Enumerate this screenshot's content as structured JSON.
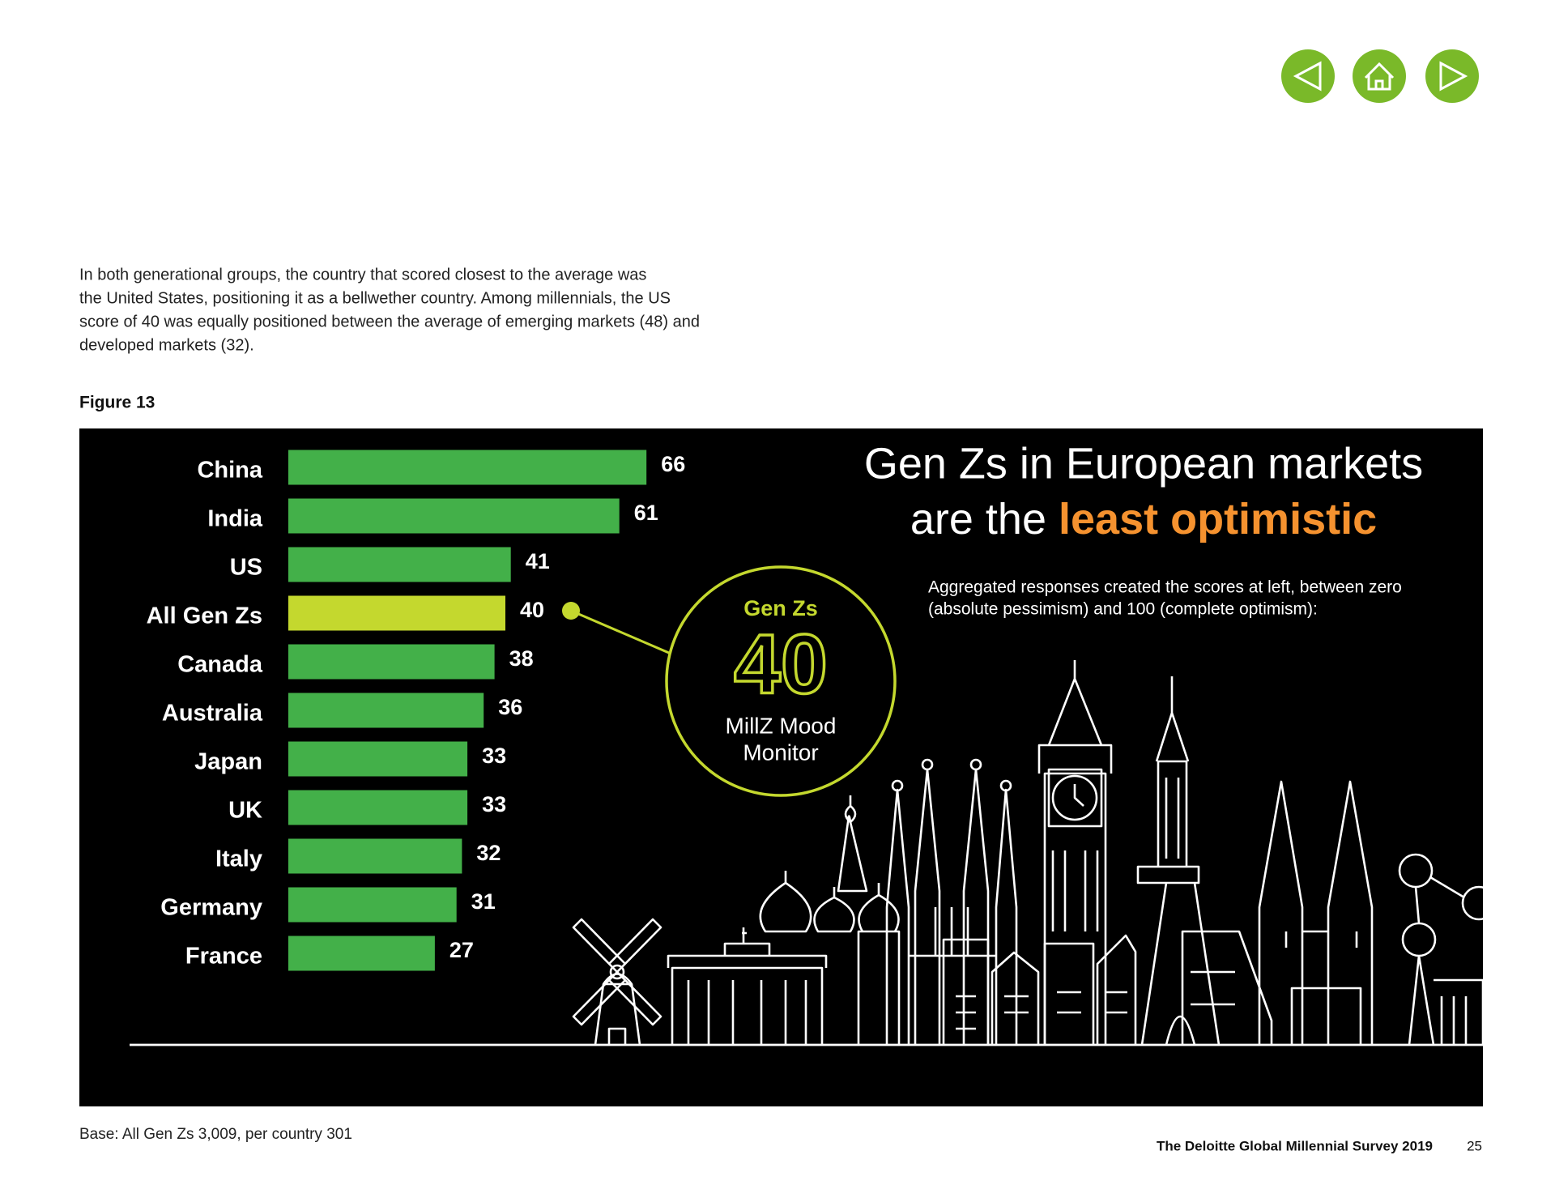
{
  "body_text": [
    "In both generational groups, the country that scored closest to the average was",
    "the United States, positioning it as a bellwether country. Among millennials, the US",
    "score of 40 was equally positioned between the average of emerging markets (48) and",
    "developed markets (32)."
  ],
  "figure_label": "Figure 13",
  "chart_data": {
    "type": "bar",
    "orientation": "horizontal",
    "title_parts": [
      "Gen Zs in European markets",
      "are the",
      "least optimistic"
    ],
    "subtitle": [
      "Aggregated responses created the scores at left, between zero",
      "(absolute pessimism) and 100 (complete optimism):"
    ],
    "categories": [
      "China",
      "India",
      "US",
      "All Gen Zs",
      "Canada",
      "Australia",
      "Japan",
      "UK",
      "Italy",
      "Germany",
      "France"
    ],
    "values": [
      66,
      61,
      41,
      40,
      38,
      36,
      33,
      33,
      32,
      31,
      27
    ],
    "colors": [
      "#43b049",
      "#43b049",
      "#43b049",
      "#c4d82e",
      "#43b049",
      "#43b049",
      "#43b049",
      "#43b049",
      "#43b049",
      "#43b049",
      "#43b049"
    ],
    "callout": {
      "heading": "Gen Zs",
      "value": 40,
      "caption": [
        "MillZ Mood",
        "Monitor"
      ],
      "color": "#c4d82e"
    },
    "title_accent_color": "#f5922f"
  },
  "footer": {
    "base": "Base: All Gen Zs  3,009, per country 301",
    "publication": "The Deloitte Global Millennial Survey 2019",
    "page": "25"
  }
}
